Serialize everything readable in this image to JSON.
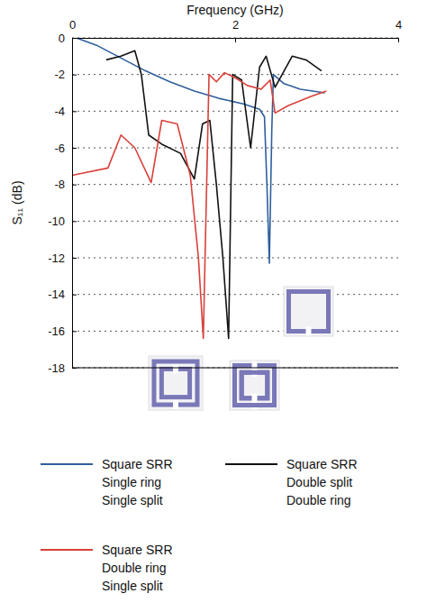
{
  "chart_data": {
    "type": "line",
    "x_label": "Frequency (GHz)",
    "y_label": "S₁₁ (dB)",
    "xlim": [
      0,
      4
    ],
    "xticks": [
      0,
      2,
      4
    ],
    "ylim": [
      -18,
      0
    ],
    "yticks": [
      0,
      -2,
      -4,
      -6,
      -8,
      -10,
      -12,
      -14,
      -16,
      -18
    ],
    "grid": true,
    "legend": "bottom",
    "series": [
      {
        "name": "Square SRR\nSingle ring\nSingle split",
        "color": "#2e5f9e",
        "x": [
          0.05,
          0.3,
          0.6,
          0.9,
          1.2,
          1.5,
          1.8,
          2.1,
          2.3,
          2.36,
          2.39,
          2.42,
          2.45,
          2.47,
          2.6,
          2.8,
          3.1
        ],
        "values": [
          0,
          -0.4,
          -1.1,
          -1.8,
          -2.4,
          -2.9,
          -3.3,
          -3.6,
          -3.9,
          -4.3,
          -8,
          -12.3,
          -5,
          -2,
          -2.5,
          -2.8,
          -3.0
        ]
      },
      {
        "name": "Square SRR\nDouble split\nDouble ring",
        "color": "#111111",
        "x": [
          0.42,
          0.6,
          0.77,
          0.85,
          0.94,
          1.1,
          1.33,
          1.5,
          1.6,
          1.69,
          1.77,
          1.85,
          1.92,
          1.97,
          2.08,
          2.19,
          2.3,
          2.38,
          2.49,
          2.7,
          2.87,
          3.06
        ],
        "values": [
          -1.2,
          -1.0,
          -0.7,
          -2.0,
          -5.3,
          -5.8,
          -6.3,
          -7.7,
          -4.7,
          -4.5,
          -8.0,
          -12,
          -16.4,
          -2.0,
          -2.3,
          -6.0,
          -1.6,
          -1.0,
          -2.7,
          -1.0,
          -1.2,
          -1.8
        ]
      },
      {
        "name": "Square SRR\nDouble ring\nSingle split",
        "color": "#d9403a",
        "x": [
          0,
          0.44,
          0.6,
          0.77,
          0.97,
          1.1,
          1.29,
          1.45,
          1.55,
          1.61,
          1.68,
          1.77,
          1.87,
          2.01,
          2.15,
          2.32,
          2.43,
          2.49,
          2.65,
          2.93,
          3.12
        ],
        "values": [
          -7.5,
          -7.1,
          -5.3,
          -6.0,
          -7.9,
          -4.5,
          -4.7,
          -7.5,
          -12,
          -16.4,
          -2.0,
          -2.4,
          -1.9,
          -2.2,
          -2.6,
          -2.8,
          -2.3,
          -4.1,
          -3.7,
          -3.2,
          -2.9
        ]
      }
    ]
  }
}
